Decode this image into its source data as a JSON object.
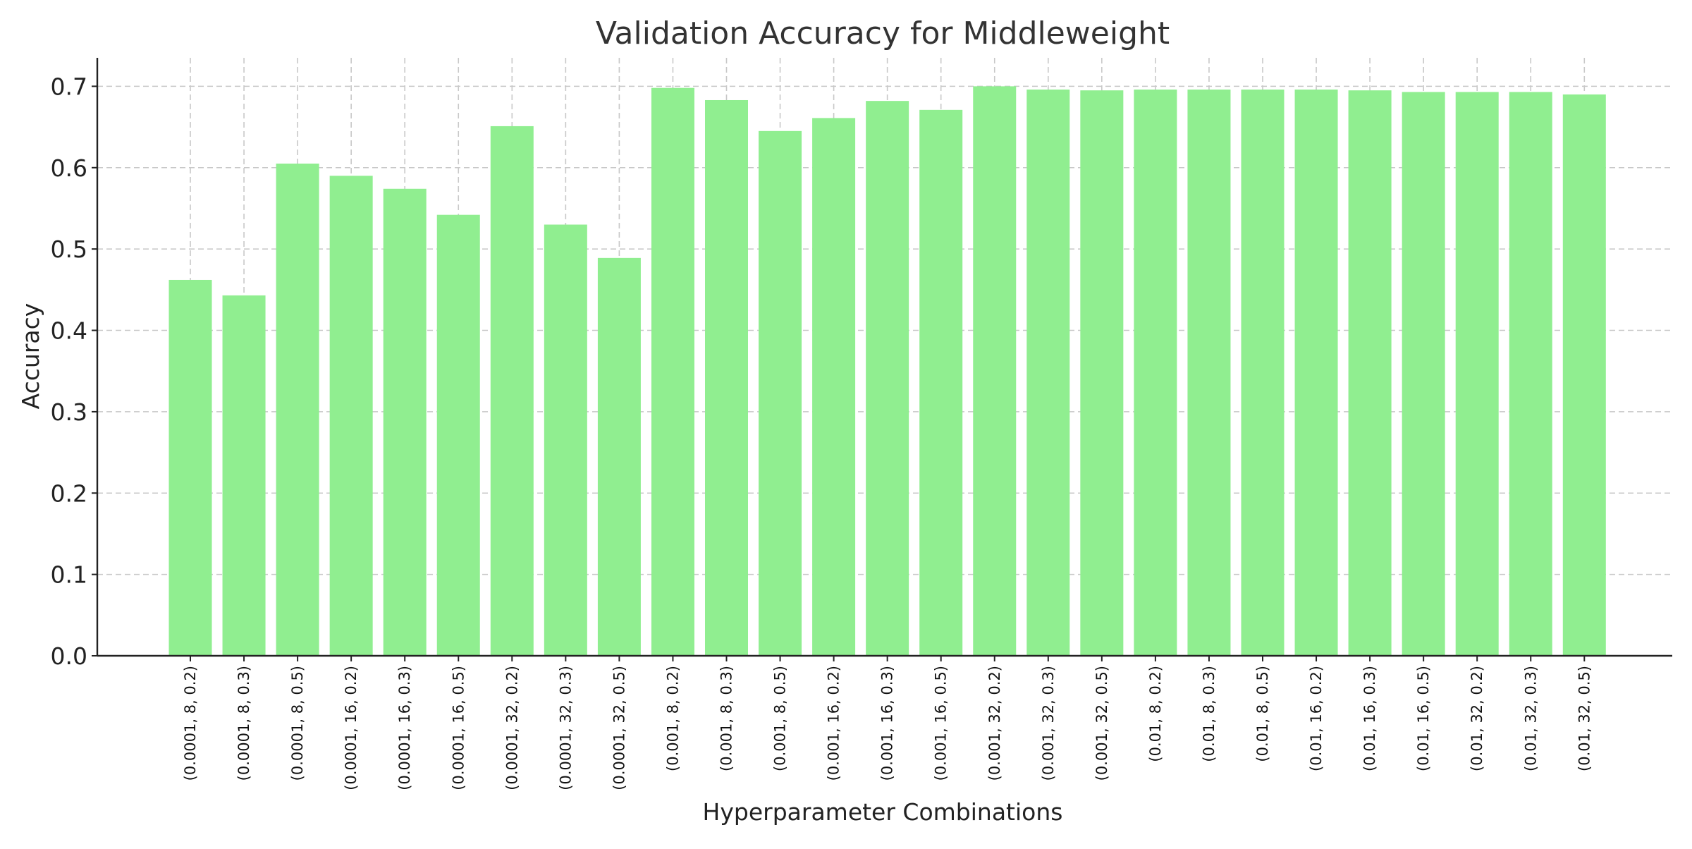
{
  "chart_data": {
    "type": "bar",
    "title": "Validation Accuracy for Middleweight",
    "xlabel": "Hyperparameter Combinations",
    "ylabel": "Accuracy",
    "ylim": [
      0,
      0.735
    ],
    "yticks": [
      "0.0",
      "0.1",
      "0.2",
      "0.3",
      "0.4",
      "0.5",
      "0.6",
      "0.7"
    ],
    "grid": true,
    "bar_color": "#90ee90",
    "categories": [
      "(0.0001, 8, 0.2)",
      "(0.0001, 8, 0.3)",
      "(0.0001, 8, 0.5)",
      "(0.0001, 16, 0.2)",
      "(0.0001, 16, 0.3)",
      "(0.0001, 16, 0.5)",
      "(0.0001, 32, 0.2)",
      "(0.0001, 32, 0.3)",
      "(0.0001, 32, 0.5)",
      "(0.001, 8, 0.2)",
      "(0.001, 8, 0.3)",
      "(0.001, 8, 0.5)",
      "(0.001, 16, 0.2)",
      "(0.001, 16, 0.3)",
      "(0.001, 16, 0.5)",
      "(0.001, 32, 0.2)",
      "(0.001, 32, 0.3)",
      "(0.001, 32, 0.5)",
      "(0.01, 8, 0.2)",
      "(0.01, 8, 0.3)",
      "(0.01, 8, 0.5)",
      "(0.01, 16, 0.2)",
      "(0.01, 16, 0.3)",
      "(0.01, 16, 0.5)",
      "(0.01, 32, 0.2)",
      "(0.01, 32, 0.3)",
      "(0.01, 32, 0.5)"
    ],
    "values": [
      0.462,
      0.443,
      0.605,
      0.59,
      0.574,
      0.542,
      0.651,
      0.53,
      0.489,
      0.698,
      0.683,
      0.645,
      0.661,
      0.682,
      0.671,
      0.7,
      0.696,
      0.695,
      0.696,
      0.696,
      0.696,
      0.696,
      0.695,
      0.693,
      0.693,
      0.693,
      0.69
    ]
  }
}
